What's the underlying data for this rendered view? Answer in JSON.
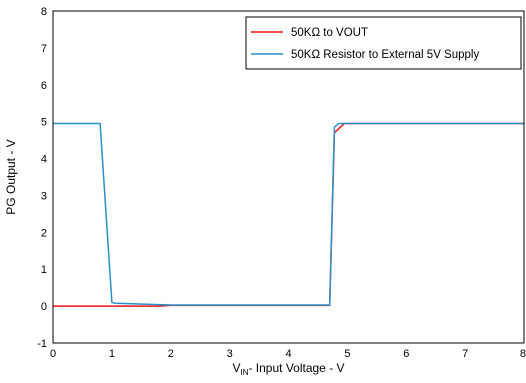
{
  "chart_data": {
    "type": "line",
    "xlabel_main": "V",
    "xlabel_sub": "IN",
    "xlabel_rest": "- Input Voltage - V",
    "ylabel": "PG Output - V",
    "xlim": [
      0,
      8
    ],
    "ylim": [
      -1,
      8
    ],
    "x_ticks": [
      "0",
      "1",
      "2",
      "3",
      "4",
      "5",
      "6",
      "7",
      "8"
    ],
    "y_ticks": [
      "-1",
      "0",
      "1",
      "2",
      "3",
      "4",
      "5",
      "6",
      "7",
      "8"
    ],
    "grid": false,
    "legend_position": "top-right",
    "series": [
      {
        "name": "50KΩ to VOUT",
        "color": "#e8141c",
        "x": [
          0,
          1.0,
          1.8,
          2.0,
          4.7,
          4.78,
          4.95,
          8
        ],
        "y": [
          0,
          0,
          0,
          0.02,
          0.02,
          4.7,
          4.95,
          4.95
        ]
      },
      {
        "name": "50KΩ Resistor to External 5V Supply",
        "color": "#2a8fc7",
        "x": [
          0,
          0.8,
          1.0,
          1.05,
          2.0,
          4.7,
          4.78,
          4.85,
          8
        ],
        "y": [
          4.95,
          4.95,
          0.1,
          0.08,
          0.03,
          0.03,
          4.85,
          4.95,
          4.95
        ]
      }
    ]
  }
}
